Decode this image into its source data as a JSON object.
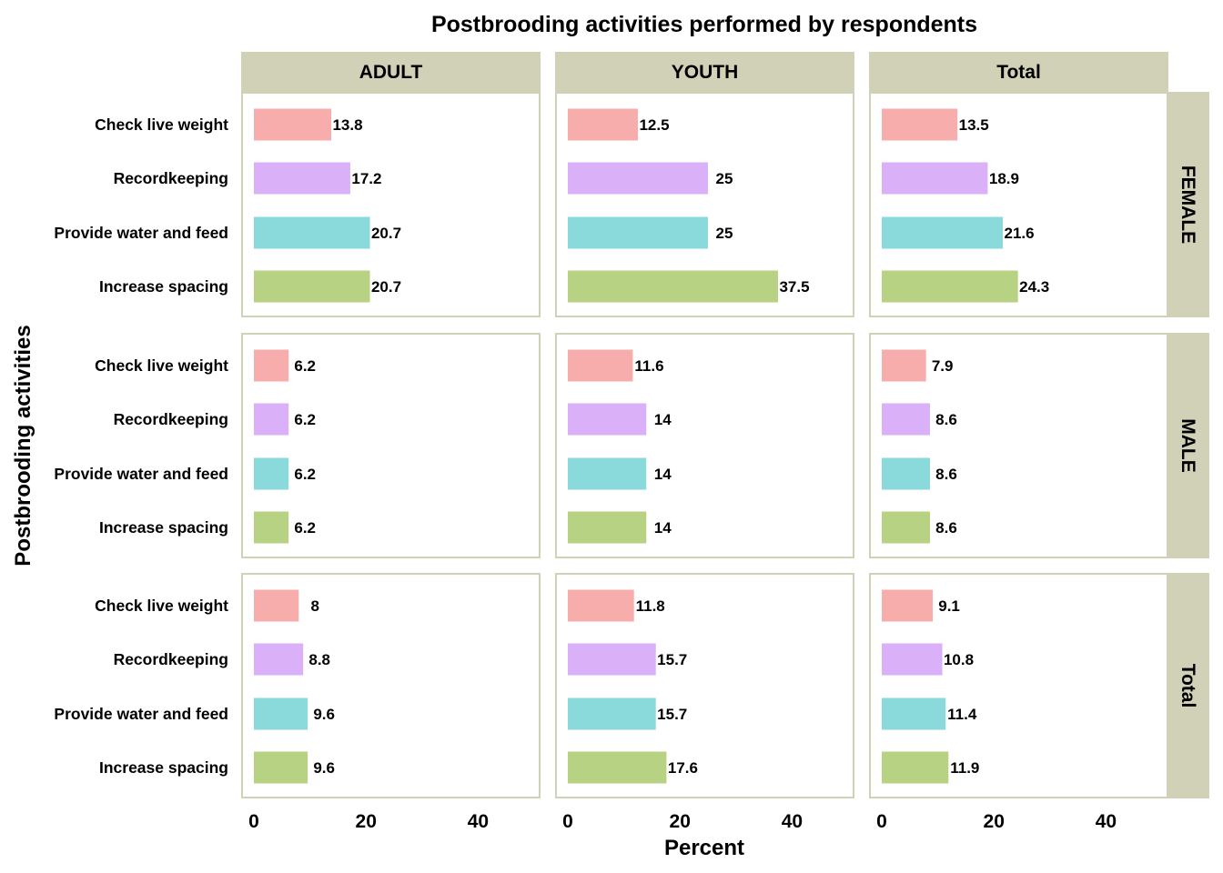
{
  "chart_data": {
    "type": "bar",
    "orientation": "horizontal",
    "title": "Postbrooding activities performed by respondents",
    "xlabel": "Percent",
    "ylabel": "Postbrooding activities",
    "xlim": [
      0,
      50
    ],
    "xticks": [
      "0",
      "20",
      "40"
    ],
    "xtick_values": [
      0,
      20,
      40
    ],
    "grid": false,
    "legend": "none",
    "column_facets": [
      "ADULT",
      "YOUTH",
      "Total"
    ],
    "row_facets": [
      "FEMALE",
      "MALE",
      "Total"
    ],
    "categories": [
      "Check live weight",
      "Recordkeeping",
      "Provide water and feed",
      "Increase spacing"
    ],
    "category_colors": [
      "#F8ADAD",
      "#DAB0F8",
      "#8AD9DB",
      "#B7D282"
    ],
    "panels": [
      {
        "row": "FEMALE",
        "column": "ADULT",
        "values": [
          13.8,
          17.2,
          20.7,
          20.7
        ],
        "labels": [
          "13.8",
          "17.2",
          "20.7",
          "20.7"
        ]
      },
      {
        "row": "FEMALE",
        "column": "YOUTH",
        "values": [
          12.5,
          25,
          25,
          37.5
        ],
        "labels": [
          "12.5",
          "25",
          "25",
          "37.5"
        ]
      },
      {
        "row": "FEMALE",
        "column": "Total",
        "values": [
          13.5,
          18.9,
          21.6,
          24.3
        ],
        "labels": [
          "13.5",
          "18.9",
          "21.6",
          "24.3"
        ]
      },
      {
        "row": "MALE",
        "column": "ADULT",
        "values": [
          6.2,
          6.2,
          6.2,
          6.2
        ],
        "labels": [
          "6.2",
          "6.2",
          "6.2",
          "6.2"
        ]
      },
      {
        "row": "MALE",
        "column": "YOUTH",
        "values": [
          11.6,
          14,
          14,
          14
        ],
        "labels": [
          "11.6",
          "14",
          "14",
          "14"
        ]
      },
      {
        "row": "MALE",
        "column": "Total",
        "values": [
          7.9,
          8.6,
          8.6,
          8.6
        ],
        "labels": [
          "7.9",
          "8.6",
          "8.6",
          "8.6"
        ]
      },
      {
        "row": "Total",
        "column": "ADULT",
        "values": [
          8,
          8.8,
          9.6,
          9.6
        ],
        "labels": [
          "8",
          "8.8",
          "9.6",
          "9.6"
        ]
      },
      {
        "row": "Total",
        "column": "YOUTH",
        "values": [
          11.8,
          15.7,
          15.7,
          17.6
        ],
        "labels": [
          "11.8",
          "15.7",
          "15.7",
          "17.6"
        ]
      },
      {
        "row": "Total",
        "column": "Total",
        "values": [
          9.1,
          10.8,
          11.4,
          11.9
        ],
        "labels": [
          "9.1",
          "10.8",
          "11.4",
          "11.9"
        ]
      }
    ],
    "colors": {
      "strip_fill": "#D1D1B8",
      "panel_border": "#D1D1B8",
      "background": "#FFFFFF"
    }
  }
}
